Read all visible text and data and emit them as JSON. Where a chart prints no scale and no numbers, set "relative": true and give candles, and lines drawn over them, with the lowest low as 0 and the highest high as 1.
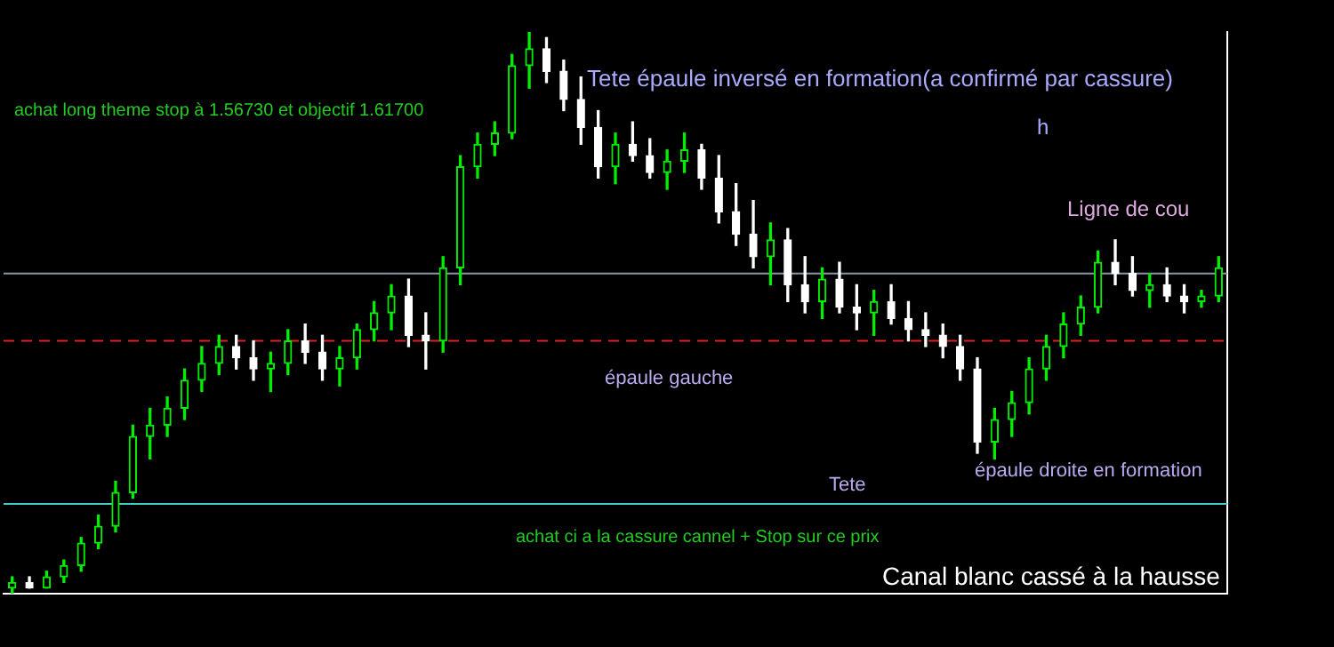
{
  "chart_data": {
    "type": "candlestick",
    "relative": true,
    "tick_labels": false,
    "grid": false,
    "legend": false,
    "categories": [
      null,
      null,
      null,
      null,
      null,
      null,
      null,
      null,
      null,
      null,
      null,
      null,
      null,
      null,
      null,
      null,
      null,
      null,
      null,
      null,
      null,
      null,
      null,
      null,
      null,
      null,
      null,
      null,
      null,
      null,
      null,
      null,
      null,
      null,
      null,
      null,
      null,
      null,
      null,
      null,
      null,
      null,
      null,
      null,
      null,
      null,
      null,
      null,
      null,
      null,
      null,
      null,
      null,
      null,
      null,
      null,
      null,
      null,
      null,
      null,
      null,
      null,
      null,
      null,
      null,
      null,
      null,
      null,
      null,
      null,
      null
    ],
    "ohlc": [
      [
        0.01,
        0.03,
        0,
        0.02
      ],
      [
        0.02,
        0.03,
        0.01,
        0.01
      ],
      [
        0.01,
        0.04,
        0.01,
        0.03
      ],
      [
        0.03,
        0.06,
        0.02,
        0.05
      ],
      [
        0.05,
        0.1,
        0.04,
        0.09
      ],
      [
        0.09,
        0.14,
        0.08,
        0.12
      ],
      [
        0.12,
        0.2,
        0.11,
        0.18
      ],
      [
        0.18,
        0.3,
        0.17,
        0.28
      ],
      [
        0.28,
        0.33,
        0.24,
        0.3
      ],
      [
        0.3,
        0.35,
        0.28,
        0.33
      ],
      [
        0.33,
        0.4,
        0.31,
        0.38
      ],
      [
        0.38,
        0.44,
        0.36,
        0.41
      ],
      [
        0.41,
        0.46,
        0.39,
        0.44
      ],
      [
        0.44,
        0.46,
        0.4,
        0.42
      ],
      [
        0.42,
        0.45,
        0.38,
        0.4
      ],
      [
        0.4,
        0.43,
        0.36,
        0.41
      ],
      [
        0.41,
        0.47,
        0.39,
        0.45
      ],
      [
        0.45,
        0.48,
        0.41,
        0.43
      ],
      [
        0.43,
        0.46,
        0.38,
        0.4
      ],
      [
        0.4,
        0.44,
        0.37,
        0.42
      ],
      [
        0.42,
        0.48,
        0.4,
        0.47
      ],
      [
        0.47,
        0.52,
        0.45,
        0.5
      ],
      [
        0.5,
        0.55,
        0.47,
        0.53
      ],
      [
        0.53,
        0.56,
        0.44,
        0.46
      ],
      [
        0.46,
        0.5,
        0.4,
        0.45
      ],
      [
        0.45,
        0.6,
        0.43,
        0.58
      ],
      [
        0.58,
        0.78,
        0.55,
        0.76
      ],
      [
        0.76,
        0.82,
        0.74,
        0.8
      ],
      [
        0.8,
        0.84,
        0.78,
        0.82
      ],
      [
        0.82,
        0.96,
        0.81,
        0.94
      ],
      [
        0.94,
        1,
        0.9,
        0.97
      ],
      [
        0.97,
        0.99,
        0.91,
        0.93
      ],
      [
        0.93,
        0.95,
        0.86,
        0.88
      ],
      [
        0.88,
        0.92,
        0.8,
        0.83
      ],
      [
        0.83,
        0.86,
        0.74,
        0.76
      ],
      [
        0.76,
        0.82,
        0.73,
        0.8
      ],
      [
        0.8,
        0.84,
        0.77,
        0.78
      ],
      [
        0.78,
        0.81,
        0.74,
        0.75
      ],
      [
        0.75,
        0.79,
        0.72,
        0.77
      ],
      [
        0.77,
        0.82,
        0.75,
        0.79
      ],
      [
        0.79,
        0.8,
        0.72,
        0.74
      ],
      [
        0.74,
        0.78,
        0.66,
        0.68
      ],
      [
        0.68,
        0.73,
        0.62,
        0.64
      ],
      [
        0.64,
        0.7,
        0.58,
        0.6
      ],
      [
        0.6,
        0.66,
        0.55,
        0.63
      ],
      [
        0.63,
        0.65,
        0.52,
        0.55
      ],
      [
        0.55,
        0.6,
        0.5,
        0.52
      ],
      [
        0.52,
        0.58,
        0.49,
        0.56
      ],
      [
        0.56,
        0.59,
        0.5,
        0.51
      ],
      [
        0.51,
        0.55,
        0.47,
        0.5
      ],
      [
        0.5,
        0.54,
        0.46,
        0.52
      ],
      [
        0.52,
        0.55,
        0.48,
        0.49
      ],
      [
        0.49,
        0.52,
        0.45,
        0.47
      ],
      [
        0.47,
        0.5,
        0.44,
        0.46
      ],
      [
        0.46,
        0.48,
        0.42,
        0.44
      ],
      [
        0.44,
        0.46,
        0.38,
        0.4
      ],
      [
        0.4,
        0.42,
        0.25,
        0.27
      ],
      [
        0.27,
        0.33,
        0.24,
        0.31
      ],
      [
        0.31,
        0.36,
        0.28,
        0.34
      ],
      [
        0.34,
        0.42,
        0.32,
        0.4
      ],
      [
        0.4,
        0.46,
        0.38,
        0.44
      ],
      [
        0.44,
        0.5,
        0.42,
        0.48
      ],
      [
        0.48,
        0.53,
        0.46,
        0.51
      ],
      [
        0.51,
        0.61,
        0.5,
        0.59
      ],
      [
        0.59,
        0.63,
        0.55,
        0.57
      ],
      [
        0.57,
        0.6,
        0.53,
        0.54
      ],
      [
        0.54,
        0.57,
        0.51,
        0.55
      ],
      [
        0.55,
        0.58,
        0.52,
        0.53
      ],
      [
        0.53,
        0.55,
        0.5,
        0.52
      ],
      [
        0.52,
        0.54,
        0.51,
        0.53
      ],
      [
        0.53,
        0.6,
        0.52,
        0.58
      ]
    ],
    "ref_lines": [
      {
        "axis": "y",
        "value": 0.57,
        "color": "#8899aa",
        "line_style": "solid"
      },
      {
        "axis": "y",
        "value": 0.45,
        "color": "#dd2222",
        "line_style": "dashed"
      },
      {
        "axis": "y",
        "value": 0.16,
        "color": "#44cccc",
        "line_style": "solid"
      }
    ],
    "annotations": [
      "Tete épaule inversé en formation(a confirmé par cassure)",
      "h",
      "Ligne de cou",
      "achat long theme stop à 1.56730 et objectif 1.61700",
      "épaule gauche",
      "Tete",
      "épaule droite en formation",
      "achat ci a la cassure cannel + Stop sur ce prix",
      "Canal blanc cassé à la hausse"
    ]
  }
}
